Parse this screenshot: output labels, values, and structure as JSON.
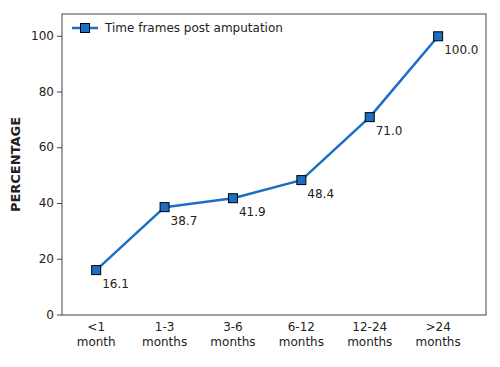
{
  "chart_data": {
    "type": "line",
    "ylabel": "PERCENTAGE",
    "categories": [
      "<1\nmonth",
      "1-3\nmonths",
      "3-6\nmonths",
      "6-12\nmonths",
      "12-24\nmonths",
      ">24\nmonths"
    ],
    "series": [
      {
        "name": "Time frames post amputation",
        "color": "#1a6fc4",
        "marker": "square",
        "values": [
          16.1,
          38.7,
          41.9,
          48.4,
          71.0,
          100.0
        ],
        "value_labels": [
          "16.1",
          "38.7",
          "41.9",
          "48.4",
          "71.0",
          "100.0"
        ]
      }
    ],
    "ylim": [
      0,
      108
    ],
    "yticks": [
      0,
      20,
      40,
      60,
      80,
      100
    ],
    "data_labels": true,
    "legend": "upper left",
    "grid": false
  }
}
